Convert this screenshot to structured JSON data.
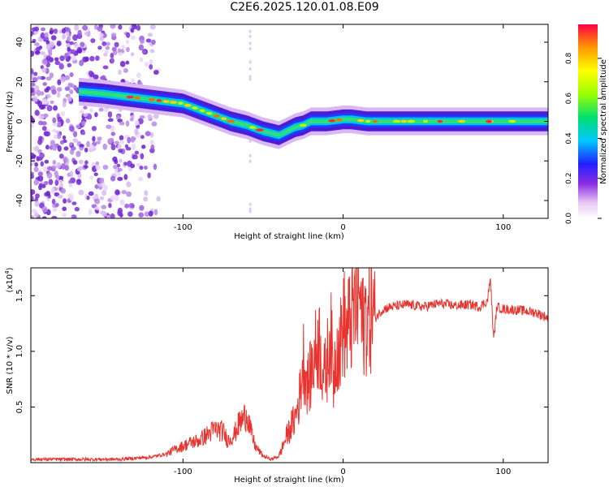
{
  "title": "C2E6.2025.120.01.08.E09",
  "chart_data": [
    {
      "type": "heatmap",
      "xlabel": "Height of straight line (km)",
      "ylabel": "Frequency (Hz)",
      "xlim": [
        -195,
        128
      ],
      "ylim": [
        -49,
        49
      ],
      "xticks": [
        -100,
        0,
        100
      ],
      "yticks": [
        -40,
        -20,
        0,
        20,
        40
      ],
      "grid": false,
      "colorbar": {
        "label": "Normalized spectral amplitude",
        "range": [
          0.0,
          0.97
        ],
        "ticks": [
          0.0,
          0.2,
          0.4,
          0.6,
          0.8
        ],
        "tick_labels": [
          "0.0",
          "0.2",
          "0.4",
          "0.6",
          "0.8"
        ],
        "colormap": "rainbow"
      },
      "ridge": {
        "x": [
          -165,
          -150,
          -140,
          -130,
          -120,
          -110,
          -100,
          -90,
          -80,
          -70,
          -60,
          -50,
          -45,
          -40,
          -35,
          -30,
          -25,
          -20,
          -10,
          0,
          5,
          15,
          30,
          50,
          80,
          100,
          128
        ],
        "y": [
          15,
          14,
          13,
          12,
          11,
          10,
          9,
          6,
          3,
          0,
          -2,
          -5,
          -6,
          -7,
          -5,
          -3,
          -2,
          0,
          0,
          1,
          1,
          0,
          0,
          0,
          0,
          0,
          0
        ]
      },
      "noise_region_x": [
        -195,
        -115
      ]
    },
    {
      "type": "line",
      "xlabel": "Height of straight line (km)",
      "ylabel": "SNR (10 * v/v)",
      "y_multiplier_label": "(x10",
      "y_multiplier_exp": "4",
      "xlim": [
        -195,
        128
      ],
      "ylim": [
        0,
        17500
      ],
      "xticks": [
        -100,
        0,
        100
      ],
      "yticks": [
        5000,
        10000,
        15000
      ],
      "ytick_labels": [
        "0.5",
        "1.0",
        "1.5"
      ],
      "grid": false,
      "color": "#e8342e",
      "series": [
        {
          "x": [
            -195,
            -180,
            -160,
            -140,
            -130,
            -120,
            -110,
            -105,
            -100,
            -95,
            -90,
            -85,
            -80,
            -75,
            -72,
            -68,
            -65,
            -62,
            -60,
            -58,
            -55,
            -50,
            -45,
            -40,
            -35,
            -30,
            -27,
            -25,
            -22,
            -20,
            -18,
            -15,
            -12,
            -10,
            -8,
            -6,
            -4,
            -2,
            0,
            2,
            5,
            8,
            10,
            12,
            14,
            16,
            18,
            20,
            25,
            30,
            40,
            50,
            60,
            70,
            80,
            85,
            88,
            90,
            92,
            94,
            96,
            100,
            110,
            120,
            128
          ],
          "y": [
            300,
            300,
            300,
            300,
            400,
            500,
            800,
            1200,
            1500,
            1800,
            2000,
            2500,
            3000,
            2800,
            2000,
            2500,
            3500,
            4000,
            4500,
            3000,
            1500,
            600,
            300,
            600,
            2500,
            4000,
            6000,
            9500,
            7000,
            8000,
            9500,
            11000,
            7500,
            9000,
            12000,
            7500,
            11000,
            10000,
            13000,
            11500,
            13000,
            14000,
            15500,
            12000,
            13500,
            12500,
            14000,
            13000,
            13800,
            14000,
            14200,
            14000,
            14300,
            14100,
            14200,
            14000,
            14300,
            14500,
            16500,
            11000,
            14000,
            13800,
            13700,
            13500,
            13000
          ]
        }
      ]
    }
  ]
}
